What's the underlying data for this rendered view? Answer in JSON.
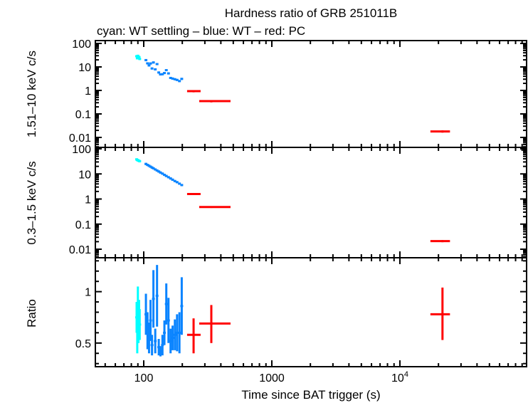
{
  "chart_data": {
    "type": "scatter",
    "title": "Hardness ratio of GRB 251011B",
    "subtitle": "cyan: WT settling – blue: WT – red: PC",
    "xlabel": "Time since BAT trigger (s)",
    "xscale": "log",
    "xlim": [
      41.9,
      97500
    ],
    "xticks": [
      {
        "v": 100,
        "label": "100"
      },
      {
        "v": 1000,
        "label": "1000"
      },
      {
        "v": 10000,
        "label": "10",
        "sup": "4"
      }
    ],
    "colors": {
      "wt_settling": "#00ffff",
      "wt": "#0a84ff",
      "pc": "#ff0000"
    },
    "panels": [
      {
        "ylabel": "1.51–10 keV c/s",
        "yscale": "log",
        "ylim": [
          0.00377,
          132
        ],
        "yticks": [
          {
            "v": 100,
            "label": "100"
          },
          {
            "v": 10,
            "label": "10"
          },
          {
            "v": 1,
            "label": "1"
          },
          {
            "v": 0.1,
            "label": "0.1"
          },
          {
            "v": 0.01,
            "label": "0.01"
          }
        ]
      },
      {
        "ylabel": "0.3–1.5 keV c/s",
        "yscale": "log",
        "ylim": [
          0.00457,
          114
        ],
        "yticks": [
          {
            "v": 100,
            "label": "100"
          },
          {
            "v": 10,
            "label": "10"
          },
          {
            "v": 1,
            "label": "1"
          },
          {
            "v": 0.1,
            "label": "0.1"
          },
          {
            "v": 0.01,
            "label": "0.01"
          }
        ]
      },
      {
        "ylabel": "Ratio",
        "yscale": "linear",
        "ylim": [
          0.27,
          1.33
        ],
        "yticks": [
          {
            "v": 1,
            "label": "1"
          },
          {
            "v": 0.5,
            "label": "0.5"
          }
        ]
      }
    ],
    "series": [
      {
        "key": "wt_settling",
        "t": [
          88,
          89,
          90,
          91,
          92,
          93
        ],
        "hard": [
          28.5,
          23.4,
          29.8,
          23.8,
          26.4,
          21.8
        ],
        "soft": [
          38,
          36,
          35,
          34,
          33,
          32
        ],
        "ratio": [
          0.75,
          0.65,
          0.85,
          0.7,
          0.8,
          0.68
        ],
        "ratio_err": [
          0.15,
          0.25,
          0.2,
          0.2,
          0.12,
          0.15
        ]
      },
      {
        "key": "wt",
        "t": [
          104,
          107,
          110,
          113,
          116,
          119,
          123,
          127,
          131,
          135,
          140,
          145,
          150,
          156,
          162,
          168,
          175,
          182,
          190,
          198
        ],
        "hard": [
          19.5,
          14.2,
          11.6,
          14.0,
          8.6,
          15.5,
          7.9,
          13.2,
          5.8,
          4.8,
          4.9,
          5.5,
          7.3,
          5.3,
          3.4,
          3.2,
          3.0,
          2.8,
          2.5,
          3.1
        ],
        "soft": [
          25,
          22.9,
          21.1,
          19.5,
          18.0,
          16.7,
          15.1,
          13.7,
          12.5,
          11.4,
          10.3,
          9.2,
          8.3,
          7.4,
          6.6,
          5.9,
          5.2,
          4.7,
          4.1,
          3.6
        ],
        "ratio": [
          0.78,
          0.62,
          0.55,
          0.72,
          0.48,
          0.93,
          0.52,
          0.96,
          0.46,
          0.42,
          0.48,
          0.6,
          0.88,
          0.72,
          0.52,
          0.55,
          0.58,
          0.6,
          0.6,
          0.86
        ],
        "ratio_err": [
          0.2,
          0.18,
          0.15,
          0.2,
          0.1,
          0.28,
          0.12,
          0.3,
          0.08,
          0.05,
          0.1,
          0.12,
          0.2,
          0.22,
          0.12,
          0.12,
          0.15,
          0.18,
          0.2,
          0.28
        ]
      },
      {
        "key": "pc",
        "t": [
          245,
          337,
          21500
        ],
        "t_lo": [
          218,
          271,
          17300
        ],
        "t_hi": [
          278,
          476,
          24600
        ],
        "hard": [
          0.93,
          0.35,
          0.018
        ],
        "hard_err": [
          0.1,
          0.04,
          0.002
        ],
        "soft": [
          1.58,
          0.48,
          0.021
        ],
        "soft_err": [
          0.12,
          0.04,
          0.002
        ],
        "ratio": [
          0.58,
          0.69,
          0.78
        ],
        "ratio_lo": [
          0.4,
          0.5,
          0.53
        ],
        "ratio_hi": [
          0.74,
          0.87,
          1.04
        ]
      }
    ]
  }
}
